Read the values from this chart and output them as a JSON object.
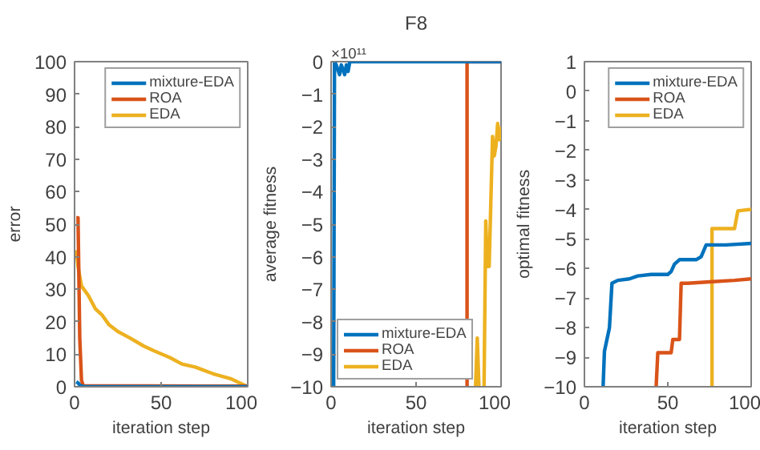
{
  "chart_data": [
    {
      "type": "line",
      "xlabel": "iteration step",
      "ylabel": "error",
      "xlim": [
        0,
        100
      ],
      "ylim": [
        0,
        100
      ],
      "xticks": [
        0,
        50,
        100
      ],
      "yticks": [
        0,
        10,
        20,
        30,
        40,
        50,
        60,
        70,
        80,
        90,
        100
      ],
      "legend": "top right",
      "grid": false,
      "series": [
        {
          "name": "mixture-EDA",
          "color": "#0072bd",
          "x": [
            1,
            2,
            3,
            4,
            6,
            100
          ],
          "values": [
            1.5,
            1.2,
            0.5,
            0.2,
            0,
            0
          ]
        },
        {
          "name": "ROA",
          "color": "#d95319",
          "x": [
            1,
            2,
            3,
            4,
            5,
            100
          ],
          "values": [
            52,
            52,
            15,
            2,
            0.3,
            0.2
          ]
        },
        {
          "name": "EDA",
          "color": "#edb120",
          "x": [
            1,
            2,
            4,
            8,
            12,
            16,
            20,
            25,
            32,
            40,
            46,
            55,
            62,
            70,
            80,
            90,
            100
          ],
          "values": [
            42,
            37,
            31,
            28,
            24,
            22,
            19,
            17,
            15,
            12.5,
            11,
            9,
            7,
            6,
            4,
            2.5,
            0
          ]
        }
      ]
    },
    {
      "type": "line",
      "title": "F8",
      "xlabel": "iteration step",
      "ylabel": "average fitness",
      "annotations": [
        "×10¹¹"
      ],
      "xlim": [
        0,
        100
      ],
      "ylim": [
        -10,
        0
      ],
      "xticks": [
        0,
        50,
        100
      ],
      "yticks": [
        -10,
        -9,
        -8,
        -7,
        -6,
        -5,
        -4,
        -3,
        -2,
        -1,
        0
      ],
      "legend": "bottom left",
      "grid": false,
      "series": [
        {
          "name": "mixture-EDA",
          "color": "#0072bd",
          "x": [
            1.5,
            2,
            3,
            5,
            6,
            8,
            9,
            10,
            11,
            100
          ],
          "values": [
            -10,
            0,
            -0.1,
            -0.4,
            -0.1,
            -0.4,
            -0.1,
            -0.3,
            0,
            0
          ]
        },
        {
          "name": "ROA",
          "color": "#d95319",
          "x": [
            80,
            80,
            100
          ],
          "values": [
            -10,
            0,
            0
          ]
        },
        {
          "name": "EDA",
          "color": "#edb120",
          "x": [
            85,
            86,
            87,
            88,
            90,
            91,
            92,
            93,
            95,
            96,
            97,
            98,
            99,
            100
          ],
          "values": [
            -10,
            -8.5,
            -10,
            null,
            -10,
            -4.9,
            -6.3,
            -6.3,
            -2.3,
            -2.9,
            -2.6,
            -1.9,
            -2.4,
            -2.0
          ]
        }
      ]
    },
    {
      "type": "line",
      "xlabel": "iteration step",
      "ylabel": "optimal fitness",
      "xlim": [
        0,
        100
      ],
      "ylim": [
        -10,
        1
      ],
      "xticks": [
        0,
        50,
        100
      ],
      "yticks": [
        -10,
        -9,
        -8,
        -7,
        -6,
        -5,
        -4,
        -3,
        -2,
        -1,
        0,
        1
      ],
      "legend": "top right",
      "grid": false,
      "series": [
        {
          "name": "mixture-EDA",
          "color": "#0072bd",
          "x": [
            11.2,
            12,
            15,
            16.5,
            20,
            27,
            32,
            40,
            50,
            52,
            54,
            57,
            67,
            70,
            73,
            85,
            100
          ],
          "values": [
            -10,
            -8.8,
            -8,
            -6.5,
            -6.4,
            -6.35,
            -6.25,
            -6.2,
            -6.2,
            -6.1,
            -5.85,
            -5.7,
            -5.7,
            -5.6,
            -5.2,
            -5.2,
            -5.15
          ]
        },
        {
          "name": "ROA",
          "color": "#d95319",
          "x": [
            43,
            44,
            52,
            53,
            57,
            58,
            62,
            75,
            90,
            100
          ],
          "values": [
            -10,
            -8.85,
            -8.85,
            -8.4,
            -8.4,
            -6.5,
            -6.5,
            -6.45,
            -6.4,
            -6.35
          ]
        },
        {
          "name": "EDA",
          "color": "#edb120",
          "x": [
            76.5,
            76.5,
            90,
            92,
            100
          ],
          "values": [
            -10,
            -4.65,
            -4.65,
            -4.05,
            -4.0
          ]
        }
      ]
    }
  ]
}
